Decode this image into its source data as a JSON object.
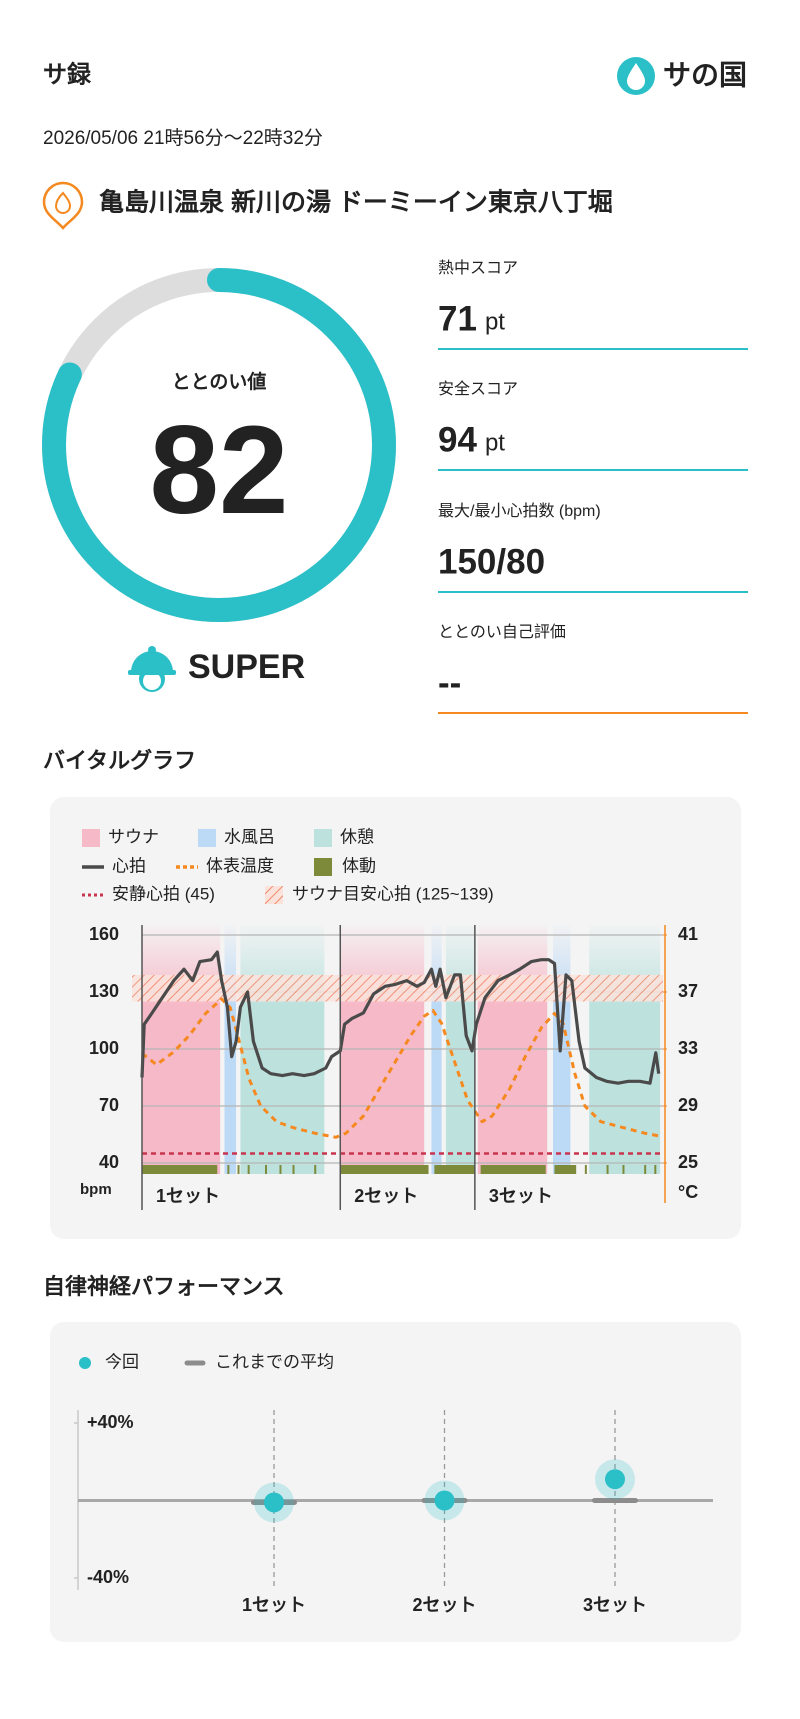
{
  "header": {
    "title": "サ録",
    "logo": "サの国",
    "datetime": "2026/05/06 21時56分〜22時32分",
    "facility": "亀島川温泉 新川の湯 ドーミーイン東京八丁堀"
  },
  "score": {
    "label": "ととのい値",
    "value": 82,
    "range": [
      0,
      100
    ],
    "rank": "SUPER",
    "color": "#2bbfc8"
  },
  "stats": [
    {
      "label": "熱中スコア",
      "value": 71,
      "unit": "pt"
    },
    {
      "label": "安全スコア",
      "value": 94,
      "unit": "pt"
    },
    {
      "label": "最大/最小心拍数 (bpm)",
      "value": "150/80"
    },
    {
      "label": "ととのい自己評価",
      "value": "--"
    }
  ],
  "chart_data": [
    {
      "type": "line",
      "title": "バイタルグラフ",
      "xlim": [
        0,
        36
      ],
      "ylim": [
        40,
        160
      ],
      "yticks": [
        40,
        70,
        100,
        130,
        160
      ],
      "y_unit": "bpm",
      "y2lim": [
        25,
        41
      ],
      "y2ticks": [
        25,
        29,
        33,
        37,
        41
      ],
      "y2_unit": "°C",
      "grid": true,
      "phases": [
        {
          "name": "サウナ",
          "color": "#f6b9c8",
          "intervals": [
            [
              0,
              5.4
            ],
            [
              13.7,
              19.5
            ],
            [
              23.2,
              28.0
            ]
          ]
        },
        {
          "name": "水風呂",
          "color": "#bcd9f6",
          "intervals": [
            [
              5.7,
              6.5
            ],
            [
              20.0,
              20.7
            ],
            [
              28.4,
              29.6
            ]
          ]
        },
        {
          "name": "休憩",
          "color": "#bde2de",
          "intervals": [
            [
              6.8,
              12.6
            ],
            [
              21.0,
              23.0
            ],
            [
              30.9,
              35.8
            ]
          ]
        }
      ],
      "series": [
        {
          "name": "心拍",
          "color": "#4a4a4a",
          "x": [
            0,
            0.15,
            0.7,
            1.4,
            2.2,
            2.9,
            3.5,
            4.0,
            4.8,
            5.2,
            5.5,
            5.9,
            6.2,
            6.5,
            6.8,
            7.3,
            7.7,
            8.3,
            8.9,
            9.7,
            10.4,
            11.2,
            11.9,
            12.7,
            13.1,
            13.7,
            14.0,
            14.5,
            15.3,
            16.0,
            16.8,
            17.5,
            18.3,
            19.0,
            19.5,
            20.0,
            20.3,
            20.6,
            21.0,
            21.6,
            22.0,
            22.4,
            22.8,
            23.1,
            23.7,
            24.6,
            25.4,
            26.1,
            26.9,
            27.6,
            28.1,
            28.5,
            28.9,
            29.3,
            29.7,
            30.2,
            30.6,
            31.4,
            32.1,
            32.9,
            33.6,
            34.4,
            35.1,
            35.5,
            35.7
          ],
          "values": [
            85,
            113,
            119,
            127,
            136,
            142,
            136,
            146,
            147,
            151,
            136,
            122,
            96,
            104,
            122,
            130,
            104,
            90,
            87,
            86,
            87,
            86,
            87,
            90,
            96,
            99,
            113,
            116,
            119,
            129,
            133,
            134,
            136,
            133,
            135,
            142,
            133,
            142,
            127,
            139,
            139,
            107,
            99,
            113,
            127,
            136,
            139,
            142,
            146,
            147,
            147,
            145,
            99,
            139,
            136,
            104,
            90,
            85,
            83,
            82,
            83,
            83,
            82,
            98,
            87
          ]
        },
        {
          "name": "体表温度",
          "color": "#f5891f",
          "axis": "y2",
          "x": [
            0,
            1.0,
            2.2,
            3.3,
            4.4,
            5.5,
            6.1,
            6.7,
            7.4,
            8.2,
            9.3,
            10.4,
            11.9,
            13.4,
            14.1,
            15.3,
            16.4,
            17.5,
            18.6,
            19.5,
            20.1,
            20.7,
            21.6,
            22.5,
            23.5,
            24.2,
            25.4,
            26.5,
            27.6,
            28.5,
            29.1,
            29.9,
            30.6,
            31.7,
            33.2,
            34.7,
            35.7
          ],
          "values": [
            32.7,
            31.9,
            32.8,
            34.0,
            35.5,
            36.5,
            35.9,
            33.6,
            30.9,
            29.0,
            27.9,
            27.5,
            27.1,
            26.8,
            27.1,
            28.3,
            30.2,
            32.1,
            34.0,
            35.3,
            35.7,
            34.8,
            32.1,
            29.4,
            27.9,
            28.3,
            30.2,
            32.5,
            34.5,
            35.5,
            34.8,
            31.3,
            29.0,
            27.9,
            27.5,
            27.1,
            26.9
          ]
        }
      ],
      "movement": {
        "name": "体動",
        "color": "#7d8a3a",
        "intervals": [
          [
            0,
            5.2
          ],
          [
            5.9,
            6.0
          ],
          [
            6.6,
            6.7
          ],
          [
            7.3,
            7.4
          ],
          [
            8.5,
            8.6
          ],
          [
            9.5,
            9.6
          ],
          [
            10.4,
            10.5
          ],
          [
            11.9,
            12.0
          ],
          [
            13.7,
            19.8
          ],
          [
            20.2,
            23.0
          ],
          [
            23.4,
            27.9
          ],
          [
            28.5,
            30.0
          ],
          [
            30.6,
            30.7
          ],
          [
            32.1,
            32.2
          ],
          [
            33.2,
            33.3
          ],
          [
            34.7,
            34.8
          ],
          [
            35.4,
            35.5
          ]
        ]
      },
      "resting_hr": {
        "name": "安静心拍 (45)",
        "value": 45,
        "color": "#c8354f"
      },
      "target_hr": {
        "name": "サウナ目安心拍 (125~139)",
        "range": [
          125,
          139
        ],
        "color": "#f08a6a"
      },
      "sets": [
        {
          "label": "1セット",
          "x": 0
        },
        {
          "label": "2セット",
          "x": 13.7
        },
        {
          "label": "3セット",
          "x": 23.0
        }
      ]
    },
    {
      "type": "dot",
      "title": "自律神経パフォーマンス",
      "categories": [
        "1セット",
        "2セット",
        "3セット"
      ],
      "series": [
        {
          "name": "今回",
          "color": "#2bbfc8",
          "values": [
            -1,
            0,
            11
          ]
        },
        {
          "name": "これまでの平均",
          "color": "#8c8c8c",
          "values": [
            -1,
            0,
            0
          ]
        }
      ],
      "ylim": [
        -40,
        40
      ],
      "yticks": [
        {
          "value": 40,
          "label": "+40%"
        },
        {
          "value": -40,
          "label": "-40%"
        }
      ]
    }
  ]
}
